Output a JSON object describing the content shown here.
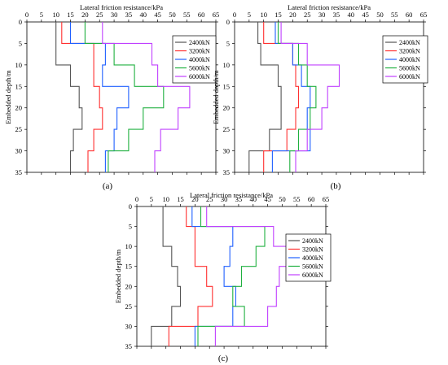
{
  "chart_data": [
    {
      "type": "line",
      "panel": "(a)",
      "xlabel": "Lateral friction resistance/kPa",
      "ylabel": "Embedded depth/m",
      "xlim": [
        0,
        65
      ],
      "ylim": [
        0,
        35
      ],
      "xticks": [
        0,
        5,
        10,
        15,
        20,
        25,
        30,
        35,
        40,
        45,
        50,
        55,
        60,
        65
      ],
      "yticks": [
        0,
        5,
        10,
        15,
        20,
        25,
        30,
        35
      ],
      "y_axis_inverted": true,
      "x_axis_position": "top",
      "legend_position": "right",
      "series": [
        {
          "name": "2400kN",
          "color": "#555555",
          "points": [
            [
              10,
              0
            ],
            [
              10,
              10
            ],
            [
              15,
              10
            ],
            [
              15,
              15
            ],
            [
              18,
              15
            ],
            [
              18,
              20
            ],
            [
              19,
              20
            ],
            [
              19,
              25
            ],
            [
              16,
              25
            ],
            [
              16,
              30
            ],
            [
              15,
              30
            ],
            [
              15,
              35
            ]
          ]
        },
        {
          "name": "3200kN",
          "color": "#ff3030",
          "points": [
            [
              12,
              0
            ],
            [
              12,
              5
            ],
            [
              23,
              5
            ],
            [
              23,
              15
            ],
            [
              25,
              15
            ],
            [
              25,
              20
            ],
            [
              26,
              20
            ],
            [
              26,
              25
            ],
            [
              23,
              25
            ],
            [
              23,
              30
            ],
            [
              21,
              30
            ],
            [
              21,
              35
            ]
          ]
        },
        {
          "name": "4000kN",
          "color": "#2060ff",
          "points": [
            [
              15,
              0
            ],
            [
              15,
              5
            ],
            [
              27,
              5
            ],
            [
              27,
              10
            ],
            [
              26,
              10
            ],
            [
              26,
              15
            ],
            [
              35,
              15
            ],
            [
              35,
              20
            ],
            [
              31,
              20
            ],
            [
              31,
              25
            ],
            [
              30,
              25
            ],
            [
              30,
              30
            ],
            [
              27,
              30
            ],
            [
              27,
              35
            ]
          ]
        },
        {
          "name": "5600kN",
          "color": "#20b040",
          "points": [
            [
              20,
              0
            ],
            [
              20,
              5
            ],
            [
              30,
              5
            ],
            [
              30,
              10
            ],
            [
              37,
              10
            ],
            [
              37,
              15
            ],
            [
              47,
              15
            ],
            [
              47,
              20
            ],
            [
              40,
              20
            ],
            [
              40,
              25
            ],
            [
              35,
              25
            ],
            [
              35,
              30
            ],
            [
              28,
              30
            ],
            [
              28,
              35
            ]
          ]
        },
        {
          "name": "6000kN",
          "color": "#c040ff",
          "points": [
            [
              26,
              0
            ],
            [
              26,
              5
            ],
            [
              43,
              5
            ],
            [
              43,
              10
            ],
            [
              45,
              10
            ],
            [
              45,
              15
            ],
            [
              56,
              15
            ],
            [
              56,
              20
            ],
            [
              52,
              20
            ],
            [
              52,
              25
            ],
            [
              46,
              25
            ],
            [
              46,
              30
            ],
            [
              44,
              30
            ],
            [
              44,
              35
            ]
          ]
        }
      ]
    },
    {
      "type": "line",
      "panel": "(b)",
      "xlabel": "Lateral friction resistance/kPa",
      "ylabel": "Embedded depth/m",
      "xlim": [
        0,
        65
      ],
      "ylim": [
        0,
        35
      ],
      "xticks": [
        0,
        5,
        10,
        15,
        20,
        25,
        30,
        35,
        40,
        45,
        50,
        55,
        60,
        65
      ],
      "yticks": [
        0,
        5,
        10,
        15,
        20,
        25,
        30,
        35
      ],
      "y_axis_inverted": true,
      "x_axis_position": "top",
      "legend_position": "right",
      "series": [
        {
          "name": "2400kN",
          "color": "#555555",
          "points": [
            [
              8,
              0
            ],
            [
              8,
              5
            ],
            [
              9,
              5
            ],
            [
              9,
              10
            ],
            [
              15,
              10
            ],
            [
              15,
              15
            ],
            [
              16,
              15
            ],
            [
              16,
              20
            ],
            [
              16,
              25
            ],
            [
              12,
              25
            ],
            [
              12,
              30
            ],
            [
              5,
              30
            ],
            [
              5,
              35
            ]
          ]
        },
        {
          "name": "3200kN",
          "color": "#ff3030",
          "points": [
            [
              10,
              0
            ],
            [
              10,
              5
            ],
            [
              20,
              5
            ],
            [
              20,
              10
            ],
            [
              21,
              10
            ],
            [
              21,
              15
            ],
            [
              22,
              15
            ],
            [
              22,
              20
            ],
            [
              21,
              20
            ],
            [
              21,
              25
            ],
            [
              18,
              25
            ],
            [
              18,
              30
            ],
            [
              10,
              30
            ],
            [
              10,
              35
            ]
          ]
        },
        {
          "name": "4000kN",
          "color": "#2060ff",
          "points": [
            [
              14,
              0
            ],
            [
              14,
              5
            ],
            [
              20,
              5
            ],
            [
              20,
              10
            ],
            [
              23,
              10
            ],
            [
              23,
              15
            ],
            [
              26,
              15
            ],
            [
              26,
              20
            ],
            [
              25,
              20
            ],
            [
              25,
              25
            ],
            [
              26,
              25
            ],
            [
              26,
              30
            ],
            [
              13,
              30
            ],
            [
              13,
              35
            ]
          ]
        },
        {
          "name": "5600kN",
          "color": "#20b040",
          "points": [
            [
              15,
              0
            ],
            [
              15,
              5
            ],
            [
              22,
              5
            ],
            [
              22,
              10
            ],
            [
              25,
              10
            ],
            [
              25,
              15
            ],
            [
              28,
              15
            ],
            [
              28,
              20
            ],
            [
              26,
              20
            ],
            [
              26,
              25
            ],
            [
              22,
              25
            ],
            [
              22,
              30
            ],
            [
              19,
              30
            ],
            [
              19,
              35
            ]
          ]
        },
        {
          "name": "6000kN",
          "color": "#c040ff",
          "points": [
            [
              16,
              0
            ],
            [
              16,
              5
            ],
            [
              25,
              5
            ],
            [
              25,
              10
            ],
            [
              36,
              10
            ],
            [
              36,
              15
            ],
            [
              32,
              15
            ],
            [
              32,
              20
            ],
            [
              30,
              20
            ],
            [
              30,
              25
            ],
            [
              25,
              25
            ],
            [
              25,
              30
            ],
            [
              21,
              30
            ],
            [
              21,
              35
            ]
          ]
        }
      ]
    },
    {
      "type": "line",
      "panel": "(c)",
      "xlabel": "Lateral friction resistance/kPa",
      "ylabel": "Embedded depth/m",
      "xlim": [
        0,
        65
      ],
      "ylim": [
        0,
        35
      ],
      "xticks": [
        0,
        5,
        10,
        15,
        20,
        25,
        30,
        35,
        40,
        45,
        50,
        55,
        60,
        65
      ],
      "yticks": [
        0,
        5,
        10,
        15,
        20,
        25,
        30,
        35
      ],
      "y_axis_inverted": true,
      "x_axis_position": "top",
      "legend_position": "right",
      "series": [
        {
          "name": "2400kN",
          "color": "#555555",
          "points": [
            [
              9,
              0
            ],
            [
              9,
              5
            ],
            [
              9,
              10
            ],
            [
              12,
              10
            ],
            [
              12,
              15
            ],
            [
              14,
              15
            ],
            [
              14,
              20
            ],
            [
              15,
              20
            ],
            [
              15,
              25
            ],
            [
              12,
              25
            ],
            [
              12,
              30
            ],
            [
              5,
              30
            ],
            [
              5,
              35
            ]
          ]
        },
        {
          "name": "3200kN",
          "color": "#ff3030",
          "points": [
            [
              17,
              0
            ],
            [
              17,
              5
            ],
            [
              20,
              5
            ],
            [
              20,
              15
            ],
            [
              24,
              15
            ],
            [
              24,
              20
            ],
            [
              26,
              20
            ],
            [
              26,
              25
            ],
            [
              21,
              25
            ],
            [
              21,
              30
            ],
            [
              11,
              30
            ],
            [
              11,
              35
            ]
          ]
        },
        {
          "name": "4000kN",
          "color": "#2060ff",
          "points": [
            [
              19,
              0
            ],
            [
              19,
              5
            ],
            [
              33,
              5
            ],
            [
              33,
              10
            ],
            [
              32,
              10
            ],
            [
              32,
              15
            ],
            [
              30,
              15
            ],
            [
              30,
              20
            ],
            [
              34,
              20
            ],
            [
              34,
              25
            ],
            [
              33,
              25
            ],
            [
              33,
              30
            ],
            [
              20,
              30
            ],
            [
              20,
              35
            ]
          ]
        },
        {
          "name": "5600kN",
          "color": "#20b040",
          "points": [
            [
              22,
              0
            ],
            [
              22,
              5
            ],
            [
              44,
              5
            ],
            [
              44,
              10
            ],
            [
              41,
              10
            ],
            [
              41,
              15
            ],
            [
              36,
              15
            ],
            [
              36,
              20
            ],
            [
              33,
              20
            ],
            [
              33,
              25
            ],
            [
              37,
              25
            ],
            [
              37,
              30
            ],
            [
              21,
              30
            ],
            [
              21,
              35
            ]
          ]
        },
        {
          "name": "6000kN",
          "color": "#c040ff",
          "points": [
            [
              24,
              0
            ],
            [
              24,
              5
            ],
            [
              47,
              5
            ],
            [
              47,
              10
            ],
            [
              53,
              10
            ],
            [
              53,
              15
            ],
            [
              49,
              15
            ],
            [
              49,
              20
            ],
            [
              48,
              20
            ],
            [
              48,
              25
            ],
            [
              45,
              25
            ],
            [
              45,
              30
            ],
            [
              27,
              30
            ],
            [
              27,
              35
            ]
          ]
        }
      ]
    }
  ]
}
